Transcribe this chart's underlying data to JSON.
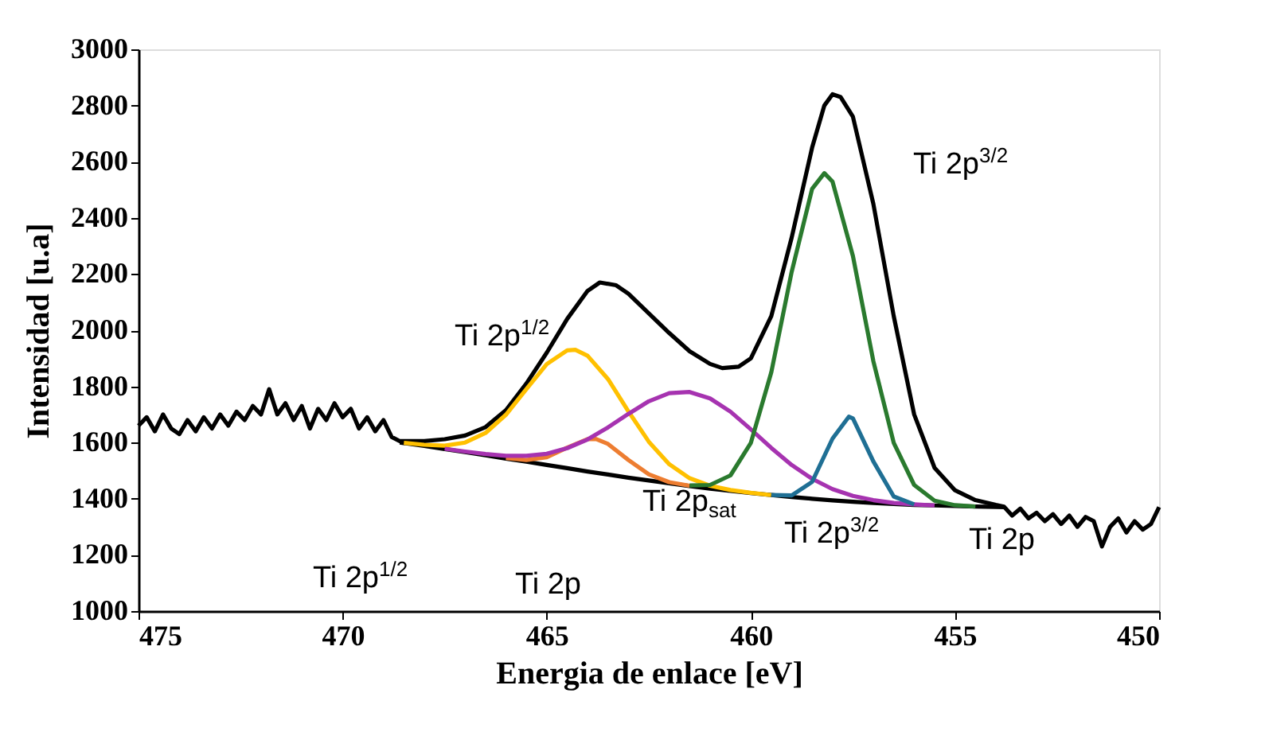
{
  "chart_data": {
    "type": "line",
    "xlabel": "Energia de enlace [eV]",
    "ylabel": "Intensidad [u.a]",
    "xlim": [
      475,
      450
    ],
    "xticks": [
      475,
      470,
      465,
      460,
      455,
      450
    ],
    "ylim": [
      1000,
      3000
    ],
    "yticks": [
      1000,
      1200,
      1400,
      1600,
      1800,
      2000,
      2200,
      2400,
      2600,
      2800,
      3000
    ],
    "grid": false,
    "legend": false,
    "marker": "none",
    "line_style": "solid",
    "series": [
      {
        "color": "#000000",
        "x": [
          475,
          474.8,
          474.6,
          474.4,
          474.2,
          474,
          473.8,
          473.6,
          473.4,
          473.2,
          473,
          472.8,
          472.6,
          472.4,
          472.2,
          472,
          471.8,
          471.6,
          471.4,
          471.2,
          471,
          470.8,
          470.6,
          470.4,
          470.2,
          470,
          469.8,
          469.6,
          469.4,
          469.2,
          469,
          468.8,
          468.6,
          468,
          467.5,
          467,
          466.5,
          466,
          465.5,
          465,
          464.5,
          464,
          463.7,
          463.3,
          463,
          462.5,
          462,
          461.5,
          461,
          460.7,
          460.3,
          460,
          459.5,
          459,
          458.5,
          458.2,
          458,
          457.8,
          457.5,
          457,
          456.5,
          456,
          455.5,
          455,
          454.5,
          454,
          453.8,
          453.6,
          453.4,
          453.2,
          453,
          452.8,
          452.6,
          452.4,
          452.2,
          452,
          451.8,
          451.6,
          451.4,
          451.2,
          451,
          450.8,
          450.6,
          450.4,
          450.2,
          450
        ],
        "values": [
          1660,
          1690,
          1640,
          1700,
          1650,
          1630,
          1680,
          1640,
          1690,
          1650,
          1700,
          1660,
          1710,
          1680,
          1730,
          1700,
          1790,
          1700,
          1740,
          1680,
          1730,
          1650,
          1720,
          1680,
          1740,
          1690,
          1720,
          1650,
          1690,
          1640,
          1680,
          1620,
          1605,
          1605,
          1612,
          1625,
          1655,
          1715,
          1810,
          1920,
          2040,
          2140,
          2170,
          2160,
          2130,
          2060,
          1990,
          1925,
          1880,
          1865,
          1870,
          1900,
          2050,
          2330,
          2650,
          2800,
          2840,
          2830,
          2760,
          2450,
          2050,
          1700,
          1510,
          1430,
          1395,
          1378,
          1372,
          1340,
          1365,
          1330,
          1350,
          1320,
          1345,
          1310,
          1340,
          1300,
          1335,
          1320,
          1230,
          1300,
          1330,
          1280,
          1320,
          1290,
          1310,
          1370
        ]
      },
      {
        "color": "#000000",
        "x": [
          468.6,
          468,
          467.5,
          467,
          466.5,
          466,
          465.5,
          465,
          464.5,
          464,
          463.5,
          463,
          462.5,
          462,
          461.5,
          461,
          460.5,
          460,
          459.5,
          459,
          458.5,
          458,
          457.5,
          457,
          456.5,
          456,
          455.5,
          455,
          454.5,
          454,
          453.8
        ],
        "values": [
          1600,
          1588,
          1577,
          1566,
          1555,
          1543,
          1532,
          1520,
          1509,
          1497,
          1486,
          1475,
          1465,
          1455,
          1445,
          1436,
          1428,
          1420,
          1413,
          1406,
          1400,
          1394,
          1389,
          1385,
          1381,
          1378,
          1376,
          1374,
          1372,
          1371,
          1370
        ]
      },
      {
        "color": "#ffc000",
        "x": [
          468.5,
          468,
          467.5,
          467,
          466.5,
          466,
          465.5,
          465,
          464.5,
          464.3,
          464,
          463.5,
          463,
          462.5,
          462,
          461.5,
          461,
          460.5,
          460,
          459.5
        ],
        "values": [
          1599,
          1592,
          1589,
          1600,
          1634,
          1699,
          1790,
          1879,
          1928,
          1930,
          1909,
          1826,
          1711,
          1603,
          1523,
          1473,
          1446,
          1431,
          1421,
          1413
        ]
      },
      {
        "color": "#ed7d31",
        "x": [
          466,
          465.5,
          465,
          464.5,
          464,
          463.8,
          463.5,
          463,
          462.5,
          462,
          461.5
        ],
        "values": [
          1545,
          1538,
          1548,
          1582,
          1612,
          1613,
          1595,
          1538,
          1487,
          1459,
          1446
        ]
      },
      {
        "color": "#a633b0",
        "x": [
          467.5,
          467,
          466.5,
          466,
          465.5,
          465,
          464.5,
          464,
          463.5,
          463,
          462.5,
          462,
          461.5,
          461,
          460.5,
          460,
          459.5,
          459,
          458.5,
          458,
          457.5,
          457,
          456.5,
          456,
          455.5
        ],
        "values": [
          1578,
          1568,
          1559,
          1553,
          1553,
          1560,
          1580,
          1611,
          1654,
          1702,
          1747,
          1776,
          1780,
          1757,
          1710,
          1647,
          1581,
          1520,
          1471,
          1434,
          1410,
          1395,
          1385,
          1380,
          1376
        ]
      },
      {
        "color": "#2a7a2e",
        "x": [
          461.5,
          461,
          460.5,
          460,
          459.5,
          459,
          458.5,
          458.2,
          458,
          457.5,
          457,
          456.5,
          456,
          455.5,
          455,
          454.5
        ],
        "values": [
          1447,
          1449,
          1483,
          1599,
          1850,
          2208,
          2503,
          2559,
          2529,
          2264,
          1890,
          1599,
          1449,
          1393,
          1377,
          1372
        ]
      },
      {
        "color": "#1f6f94",
        "x": [
          459.5,
          459,
          458.5,
          458,
          457.6,
          457.5,
          457,
          456.5,
          456
        ],
        "values": [
          1413,
          1412,
          1460,
          1614,
          1692,
          1686,
          1533,
          1408,
          1380
        ]
      }
    ],
    "annotations": [
      "Ti 2p$^{1/2}$",
      "Ti 2p$^{3/2}$",
      "Ti 2p$_{sat}$",
      "Ti 2p$^{3/2}$",
      "Ti 2p",
      "Ti 2p$^{1/2}$",
      "Ti 2p"
    ]
  }
}
